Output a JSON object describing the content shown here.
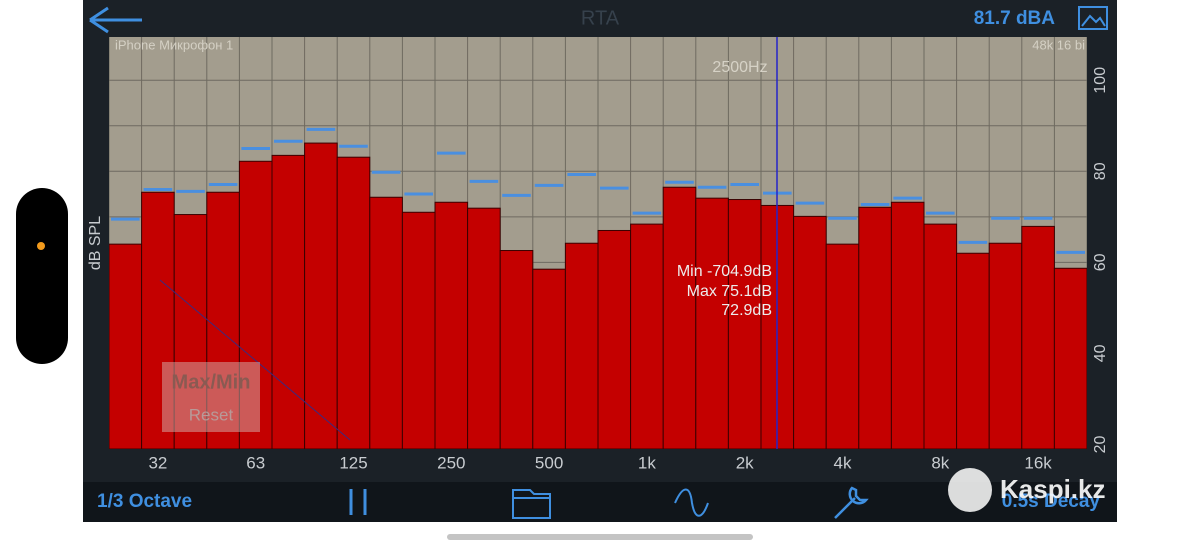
{
  "header": {
    "title": "RTA",
    "level": "81.7 dBA"
  },
  "chart_data": {
    "type": "bar",
    "source": "iPhone Микрофон 1",
    "format": "48k 16 bi",
    "ylabel": "dB SPL",
    "categories": [
      null,
      "32",
      null,
      null,
      "63",
      null,
      null,
      "125",
      null,
      null,
      "250",
      null,
      null,
      "500",
      null,
      null,
      "1k",
      null,
      null,
      "2k",
      null,
      null,
      "4k",
      null,
      null,
      "8k",
      null,
      null,
      "16k",
      null
    ],
    "values": [
      64,
      75.4,
      70.5,
      75.4,
      82.2,
      83.5,
      86.2,
      83.1,
      74.3,
      71,
      73.2,
      71.9,
      62.6,
      58.5,
      64.2,
      67,
      68.4,
      76.5,
      74.1,
      73.8,
      72.5,
      70.1,
      64,
      72.1,
      73.2,
      68.4,
      62,
      64.2,
      67.9,
      58.7
    ],
    "max_values": [
      69.5,
      76,
      75.6,
      77.1,
      85,
      86.6,
      89.2,
      85.5,
      79.8,
      75,
      84,
      77.8,
      74.7,
      76.9,
      79.3,
      76.3,
      70.8,
      77.6,
      76.5,
      77.1,
      75.2,
      73,
      69.7,
      72.7,
      74.1,
      70.8,
      64.4,
      69.7,
      69.7,
      62.2
    ],
    "color": "#c40000",
    "max_color": "#4a8fe0",
    "ylim": [
      19,
      109.5
    ],
    "yticks": [
      20,
      40,
      60,
      80,
      100
    ],
    "ygrid": [
      20,
      30,
      40,
      50,
      60,
      70,
      80,
      90,
      100
    ],
    "grid": true,
    "annotations": {
      "cursor": "2500Hz",
      "min": "Min -704.9dB",
      "max": "Max 75.1dB",
      "current": "72.9dB"
    },
    "button": {
      "title": "Max/Min",
      "action": "Reset"
    }
  },
  "toolbar": {
    "left": "1/3 Octave",
    "right": "0.5s Decay"
  },
  "watermark": "Kaspi.kz"
}
